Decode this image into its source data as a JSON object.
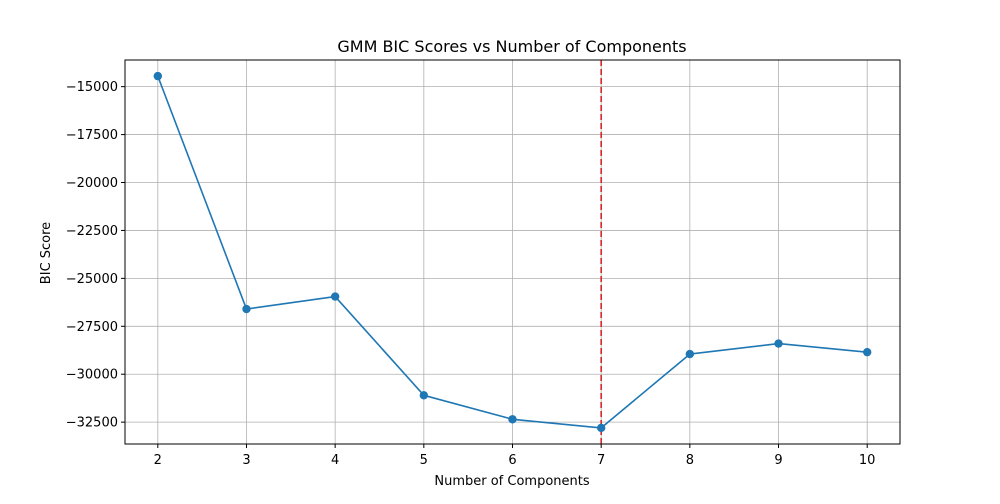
{
  "chart_data": {
    "type": "line",
    "title": "GMM BIC Scores vs Number of Components",
    "xlabel": "Number of Components",
    "ylabel": "BIC Score",
    "x": [
      2,
      3,
      4,
      5,
      6,
      7,
      8,
      9,
      10
    ],
    "series": [
      {
        "values": [
          -14450,
          -26600,
          -25950,
          -31100,
          -32350,
          -32800,
          -28950,
          -28400,
          -28850
        ],
        "color": "#1f77b4",
        "marker": "circle"
      }
    ],
    "xticks": [
      2,
      3,
      4,
      5,
      6,
      7,
      8,
      9,
      10
    ],
    "xtick_labels": [
      "2",
      "3",
      "4",
      "5",
      "6",
      "7",
      "8",
      "9",
      "10"
    ],
    "yticks": [
      -15000,
      -17500,
      -20000,
      -22500,
      -25000,
      -27500,
      -30000,
      -32500
    ],
    "ytick_labels": [
      "−15000",
      "−17500",
      "−20000",
      "−22500",
      "−25000",
      "−27500",
      "−30000",
      "−32500"
    ],
    "xlim": [
      1.63,
      10.37
    ],
    "ylim": [
      -33640,
      -13610
    ],
    "grid": true,
    "reference_line": {
      "orientation": "vertical",
      "x": 7,
      "color": "#d62728",
      "style": "dashed"
    }
  }
}
